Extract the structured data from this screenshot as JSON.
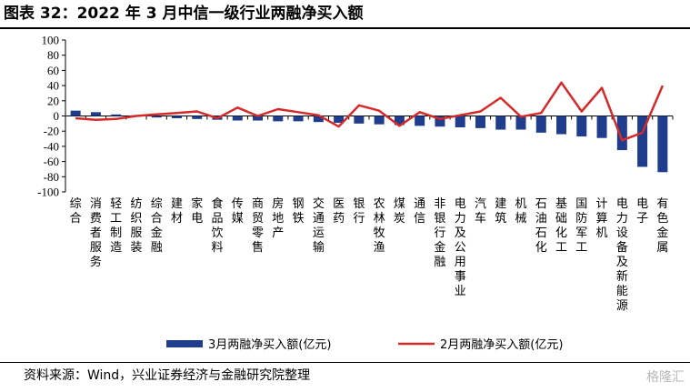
{
  "title": "图表 32：2022 年 3 月中信一级行业两融净买入额",
  "source": "资料来源：Wind，兴业证券经济与金融研究院整理",
  "watermark": "格隆汇",
  "colors": {
    "bar": "#1f3d8c",
    "line": "#d42a2a",
    "axis": "#000000"
  },
  "chart_data": {
    "type": "bar",
    "title": "",
    "xlabel": "",
    "ylabel": "",
    "ylim": [
      -100,
      100
    ],
    "yticks": [
      100,
      80,
      60,
      40,
      20,
      0,
      -20,
      -40,
      -60,
      -80,
      -100
    ],
    "categories": [
      "综合",
      "消费者服务",
      "轻工制造",
      "纺织服装",
      "综合金融",
      "建材",
      "家电",
      "食品饮料",
      "传媒",
      "商贸零售",
      "房地产",
      "钢铁",
      "交通运输",
      "医药",
      "银行",
      "农林牧渔",
      "煤炭",
      "通信",
      "非银行金融",
      "电力及公用事业",
      "汽车",
      "建筑",
      "机械",
      "石油石化",
      "基础化工",
      "国防军工",
      "计算机",
      "电力设备及新能源",
      "电子",
      "有色金属"
    ],
    "series": [
      {
        "name": "3月两融净买入额(亿元)",
        "kind": "bar",
        "values": [
          7,
          5,
          2,
          1,
          -2,
          -3,
          -4,
          -5,
          -6,
          -6,
          -7,
          -7,
          -8,
          -9,
          -10,
          -11,
          -12,
          -13,
          -14,
          -15,
          -16,
          -18,
          -18,
          -22,
          -24,
          -27,
          -29,
          -45,
          -67,
          -74
        ]
      },
      {
        "name": "2月两融净买入额(亿元)",
        "kind": "line",
        "values": [
          -3,
          -5,
          -4,
          0,
          2,
          4,
          6,
          -3,
          11,
          0,
          9,
          5,
          1,
          -14,
          14,
          7,
          -13,
          5,
          -4,
          1,
          6,
          24,
          -1,
          4,
          44,
          6,
          37,
          -32,
          -22,
          40
        ]
      }
    ],
    "legend": "bottom"
  }
}
